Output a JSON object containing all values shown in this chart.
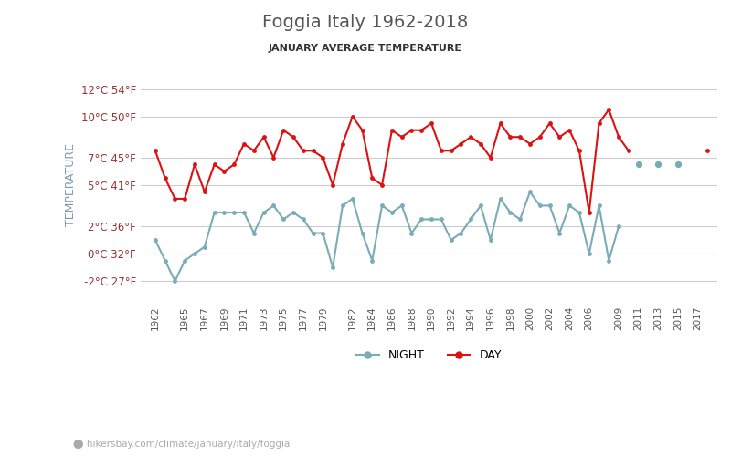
{
  "title": "Foggia Italy 1962-2018",
  "subtitle": "JANUARY AVERAGE TEMPERATURE",
  "ylabel": "TEMPERATURE",
  "xlabel_url": "hikersbay.com/climate/january/italy/foggia",
  "bg_color": "#ffffff",
  "grid_color": "#cccccc",
  "title_color": "#555555",
  "subtitle_color": "#333333",
  "ylabel_color": "#7a9aaa",
  "yticks_color": "#993333",
  "years": [
    1962,
    1963,
    1964,
    1965,
    1966,
    1967,
    1968,
    1969,
    1970,
    1971,
    1972,
    1973,
    1974,
    1975,
    1976,
    1977,
    1978,
    1979,
    1980,
    1981,
    1982,
    1983,
    1984,
    1985,
    1986,
    1987,
    1988,
    1989,
    1990,
    1991,
    1992,
    1993,
    1994,
    1995,
    1996,
    1997,
    1998,
    1999,
    2000,
    2001,
    2002,
    2003,
    2004,
    2005,
    2006,
    2007,
    2008,
    2009,
    2010,
    2011,
    2012,
    2013,
    2014,
    2015,
    2016,
    2017,
    2018
  ],
  "day_temps": [
    7.5,
    5.5,
    4.0,
    4.0,
    6.5,
    4.5,
    6.5,
    6.0,
    6.5,
    8.0,
    7.5,
    8.5,
    7.0,
    9.0,
    8.5,
    7.5,
    7.5,
    7.0,
    5.0,
    8.0,
    10.0,
    9.0,
    5.5,
    5.0,
    9.0,
    8.5,
    9.0,
    9.0,
    9.5,
    7.5,
    7.5,
    8.0,
    8.5,
    8.0,
    7.0,
    9.5,
    8.5,
    8.5,
    8.0,
    8.5,
    9.5,
    8.5,
    9.0,
    7.5,
    3.0,
    9.5,
    10.5,
    8.5,
    7.5,
    null,
    null,
    null,
    null,
    null,
    null,
    null,
    7.5
  ],
  "night_temps": [
    1.0,
    -0.5,
    -2.0,
    -0.5,
    0.0,
    0.5,
    3.0,
    3.0,
    3.0,
    3.0,
    1.5,
    3.0,
    3.5,
    2.5,
    3.0,
    2.5,
    1.5,
    1.5,
    -1.0,
    3.5,
    4.0,
    1.5,
    -0.5,
    3.5,
    3.0,
    3.5,
    1.5,
    2.5,
    2.5,
    2.5,
    1.0,
    1.5,
    2.5,
    3.5,
    1.0,
    4.0,
    3.0,
    2.5,
    4.5,
    3.5,
    3.5,
    1.5,
    3.5,
    3.0,
    0.0,
    3.5,
    -0.5,
    2.0,
    null,
    null,
    null,
    null,
    null,
    null,
    null,
    null,
    null
  ],
  "dot_years_day": [
    2011,
    2013,
    2015
  ],
  "dot_values_day": [
    6.5,
    6.5,
    6.5
  ],
  "ytick_celsius": [
    -2,
    0,
    2,
    5,
    7,
    10,
    12
  ],
  "ytick_fahrenheit": [
    27,
    32,
    36,
    41,
    45,
    50,
    54
  ],
  "ylim": [
    -3.5,
    13.5
  ],
  "line_color_day": "#dd1111",
  "line_color_night": "#7aabb8",
  "marker_size": 3.5,
  "line_width": 1.5,
  "xticks": [
    1962,
    1965,
    1967,
    1969,
    1971,
    1973,
    1975,
    1977,
    1979,
    1982,
    1984,
    1986,
    1988,
    1990,
    1992,
    1994,
    1996,
    1998,
    2000,
    2002,
    2004,
    2006,
    2009,
    2011,
    2013,
    2015,
    2017
  ]
}
